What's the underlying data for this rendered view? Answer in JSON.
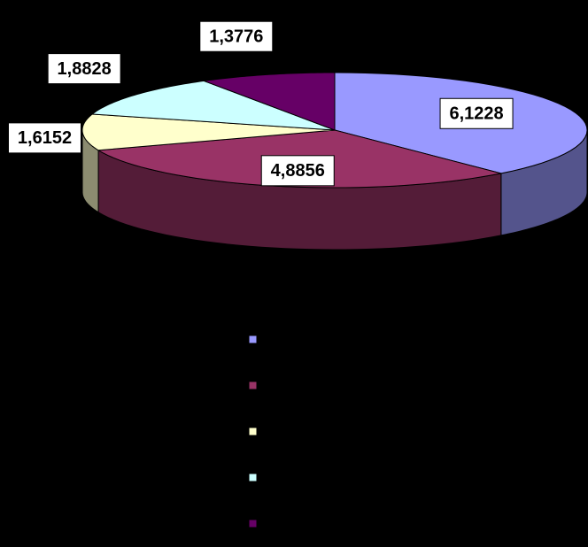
{
  "chart_data": {
    "type": "pie",
    "values": [
      6.1228,
      4.8856,
      1.6152,
      1.8828,
      1.3776
    ],
    "value_labels": [
      "6,1228",
      "4,8856",
      "1,6152",
      "1,8828",
      "1,3776"
    ],
    "colors": [
      "#9999ff",
      "#993366",
      "#ffffcc",
      "#ccffff",
      "#660066"
    ],
    "legend": "bottom"
  }
}
